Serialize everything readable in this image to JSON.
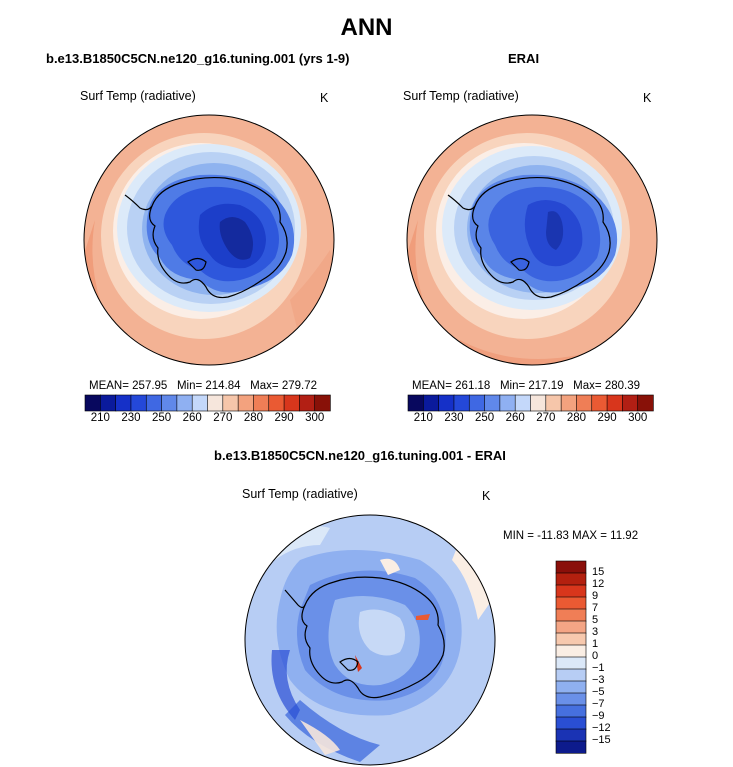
{
  "figure": {
    "title": "ANN"
  },
  "panels": [
    {
      "title": "b.e13.B1850C5CN.ne120_g16.tuning.001 (yrs 1-9)",
      "variable": "Surf Temp (radiative)",
      "units": "K",
      "stats": {
        "mean_label": "MEAN=",
        "mean": "257.95",
        "min_label": "Min=",
        "min": "214.84",
        "max_label": "Max=",
        "max": "279.72"
      }
    },
    {
      "title": "ERAI",
      "variable": "Surf Temp (radiative)",
      "units": "K",
      "stats": {
        "mean_label": "MEAN=",
        "mean": "261.18",
        "min_label": "Min=",
        "min": "217.19",
        "max_label": "Max=",
        "max": "280.39"
      }
    },
    {
      "title": "b.e13.B1850C5CN.ne120_g16.tuning.001 - ERAI",
      "variable": "Surf Temp (radiative)",
      "units": "K",
      "stats_text": "MIN = -11.83 MAX =  11.92"
    }
  ],
  "colorbar_abs": {
    "tick_labels": [
      "210",
      "230",
      "250",
      "260",
      "270",
      "280",
      "290",
      "300"
    ],
    "colors": [
      "#08085e",
      "#0a1a9c",
      "#1530c8",
      "#2448d9",
      "#3f68e3",
      "#6088ea",
      "#8fb0f2",
      "#c4d8fa",
      "#f6e6dc",
      "#f6c6aa",
      "#f3a27e",
      "#ef7e56",
      "#ea5a33",
      "#d8361c",
      "#b21f14",
      "#881108"
    ]
  },
  "colorbar_diff": {
    "levels": [
      "15",
      "12",
      "9",
      "7",
      "5",
      "3",
      "1",
      "0",
      "−1",
      "−3",
      "−5",
      "−7",
      "−9",
      "−12",
      "−15"
    ],
    "colors": [
      "#8a0f0a",
      "#b3200f",
      "#d8361c",
      "#ea5a33",
      "#f07e56",
      "#f4a585",
      "#f7c9ae",
      "#faeee4",
      "#dbe8f8",
      "#b7cdf4",
      "#8fb0f0",
      "#6a90e8",
      "#4670df",
      "#2a4fd4",
      "#1a33b4",
      "#0d1b8c"
    ]
  },
  "chart_data": [
    {
      "type": "heatmap",
      "title": "b.e13.B1850C5CN.ne120_g16.tuning.001 (yrs 1-9)",
      "variable": "Surf Temp (radiative)",
      "units": "K",
      "projection": "south polar stereographic",
      "mean": 257.95,
      "min": 214.84,
      "max": 279.72,
      "colorbar_ticks": [
        210,
        230,
        250,
        260,
        270,
        280,
        290,
        300
      ]
    },
    {
      "type": "heatmap",
      "title": "ERAI",
      "variable": "Surf Temp (radiative)",
      "units": "K",
      "projection": "south polar stereographic",
      "mean": 261.18,
      "min": 217.19,
      "max": 280.39,
      "colorbar_ticks": [
        210,
        230,
        250,
        260,
        270,
        280,
        290,
        300
      ]
    },
    {
      "type": "heatmap",
      "title": "b.e13.B1850C5CN.ne120_g16.tuning.001 - ERAI",
      "variable": "Surf Temp (radiative)",
      "units": "K",
      "projection": "south polar stereographic",
      "min": -11.83,
      "max": 11.92,
      "colorbar_levels": [
        15,
        12,
        9,
        7,
        5,
        3,
        1,
        0,
        -1,
        -3,
        -5,
        -7,
        -9,
        -12,
        -15
      ]
    }
  ]
}
